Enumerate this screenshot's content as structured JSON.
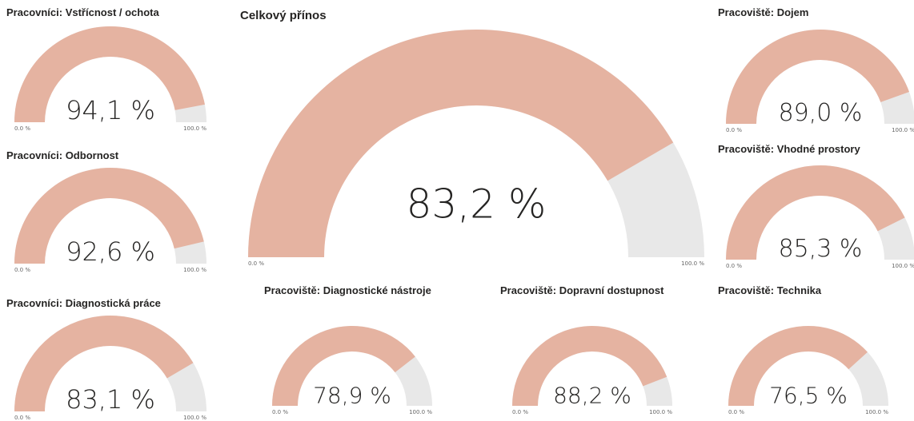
{
  "chart_data": [
    {
      "type": "gauge",
      "title": "Pracovníci: Vstřícnost / ochota",
      "value": 94.1,
      "value_labels": "94,1 %",
      "color": "#e5b3a1",
      "background": "#e8e8e8",
      "ylim": [
        0,
        100
      ],
      "yticks": [
        {
          "value": 0,
          "label": "0.0 %"
        },
        {
          "value": 100,
          "label": "100.0 %"
        }
      ]
    },
    {
      "type": "gauge",
      "title": "Pracovníci: Odbornost",
      "value": 92.6,
      "value_labels": "92,6 %",
      "color": "#e5b3a1",
      "background": "#e8e8e8",
      "ylim": [
        0,
        100
      ],
      "yticks": [
        {
          "value": 0,
          "label": "0.0 %"
        },
        {
          "value": 100,
          "label": "100.0 %"
        }
      ]
    },
    {
      "type": "gauge",
      "title": "Pracovníci: Diagnostická práce",
      "value": 83.1,
      "value_labels": "83,1 %",
      "color": "#e5b3a1",
      "background": "#e8e8e8",
      "ylim": [
        0,
        100
      ],
      "yticks": [
        {
          "value": 0,
          "label": "0.0 %"
        },
        {
          "value": 100,
          "label": "100.0 %"
        }
      ]
    },
    {
      "type": "gauge",
      "title": "Celkový přínos",
      "value": 83.2,
      "value_labels": "83,2 %",
      "color": "#e5b3a1",
      "background": "#e8e8e8",
      "ylim": [
        0,
        100
      ],
      "yticks": [
        {
          "value": 0,
          "label": "0.0 %"
        },
        {
          "value": 100,
          "label": "100.0 %"
        }
      ]
    },
    {
      "type": "gauge",
      "title": "Pracoviště: Diagnostické nástroje",
      "value": 78.9,
      "value_labels": "78,9 %",
      "color": "#e5b3a1",
      "background": "#e8e8e8",
      "ylim": [
        0,
        100
      ],
      "yticks": [
        {
          "value": 0,
          "label": "0.0 %"
        },
        {
          "value": 100,
          "label": "100.0 %"
        }
      ]
    },
    {
      "type": "gauge",
      "title": "Pracoviště: Dopravní dostupnost",
      "value": 88.2,
      "value_labels": "88,2 %",
      "color": "#e5b3a1",
      "background": "#e8e8e8",
      "ylim": [
        0,
        100
      ],
      "yticks": [
        {
          "value": 0,
          "label": "0.0 %"
        },
        {
          "value": 100,
          "label": "100.0 %"
        }
      ]
    },
    {
      "type": "gauge",
      "title": "Pracoviště: Technika",
      "value": 76.5,
      "value_labels": "76,5 %",
      "color": "#e5b3a1",
      "background": "#e8e8e8",
      "ylim": [
        0,
        100
      ],
      "yticks": [
        {
          "value": 0,
          "label": "0.0 %"
        },
        {
          "value": 100,
          "label": "100.0 %"
        }
      ]
    },
    {
      "type": "gauge",
      "title": "Pracoviště: Dojem",
      "value": 89.0,
      "value_labels": "89,0 %",
      "color": "#e5b3a1",
      "background": "#e8e8e8",
      "ylim": [
        0,
        100
      ],
      "yticks": [
        {
          "value": 0,
          "label": "0.0 %"
        },
        {
          "value": 100,
          "label": "100.0 %"
        }
      ]
    },
    {
      "type": "gauge",
      "title": "Pracoviště: Vhodné prostory",
      "value": 85.3,
      "value_labels": "85,3 %",
      "color": "#e5b3a1",
      "background": "#e8e8e8",
      "ylim": [
        0,
        100
      ],
      "yticks": [
        {
          "value": 0,
          "label": "0.0 %"
        },
        {
          "value": 100,
          "label": "100.0 %"
        }
      ]
    }
  ]
}
